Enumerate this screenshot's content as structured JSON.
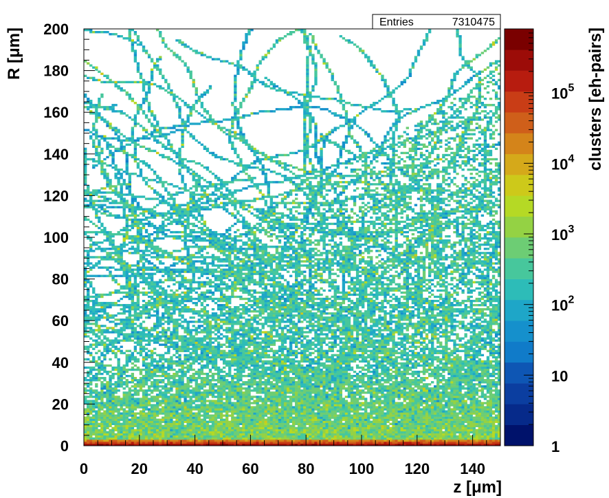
{
  "chart_data": {
    "type": "heatmap",
    "title": "",
    "xlabel": "z [μm]",
    "ylabel": "R [μm]",
    "zlabel": "clusters [eh-pairs]",
    "xlim": [
      0,
      150
    ],
    "ylim": [
      0,
      200
    ],
    "zlim": [
      1,
      800000
    ],
    "z_scale": "log",
    "x_ticks": [
      "0",
      "20",
      "40",
      "60",
      "80",
      "100",
      "120",
      "140"
    ],
    "y_ticks": [
      "0",
      "20",
      "40",
      "60",
      "80",
      "100",
      "120",
      "140",
      "160",
      "180",
      "200"
    ],
    "colorbar_ticks": [
      {
        "base": "1",
        "exp": ""
      },
      {
        "base": "10",
        "exp": ""
      },
      {
        "base": "10",
        "exp": "2"
      },
      {
        "base": "10",
        "exp": "3"
      },
      {
        "base": "10",
        "exp": "4"
      },
      {
        "base": "10",
        "exp": "5"
      }
    ],
    "palette": [
      "#00126b",
      "#062a8a",
      "#0b3ea0",
      "#0e56b4",
      "#107bc9",
      "#1590cc",
      "#1ea6c8",
      "#2dbcb8",
      "#47c79c",
      "#6dcd74",
      "#94d244",
      "#b5d925",
      "#cdc91a",
      "#d5a91a",
      "#d4841a",
      "#cf5f1a",
      "#c93d16",
      "#b71c0f",
      "#9c0c08",
      "#7a0000"
    ],
    "stats": {
      "label": "Entries",
      "value": "7310475"
    },
    "bins": {
      "nx": 150,
      "ny": 200
    },
    "distribution": "dense red/orange core at R below 3 μm across all z, green-yellow bulk for R below 30 μm, cyan/blue diffuse tracks filling the region above, density of tracks increasing with z"
  }
}
